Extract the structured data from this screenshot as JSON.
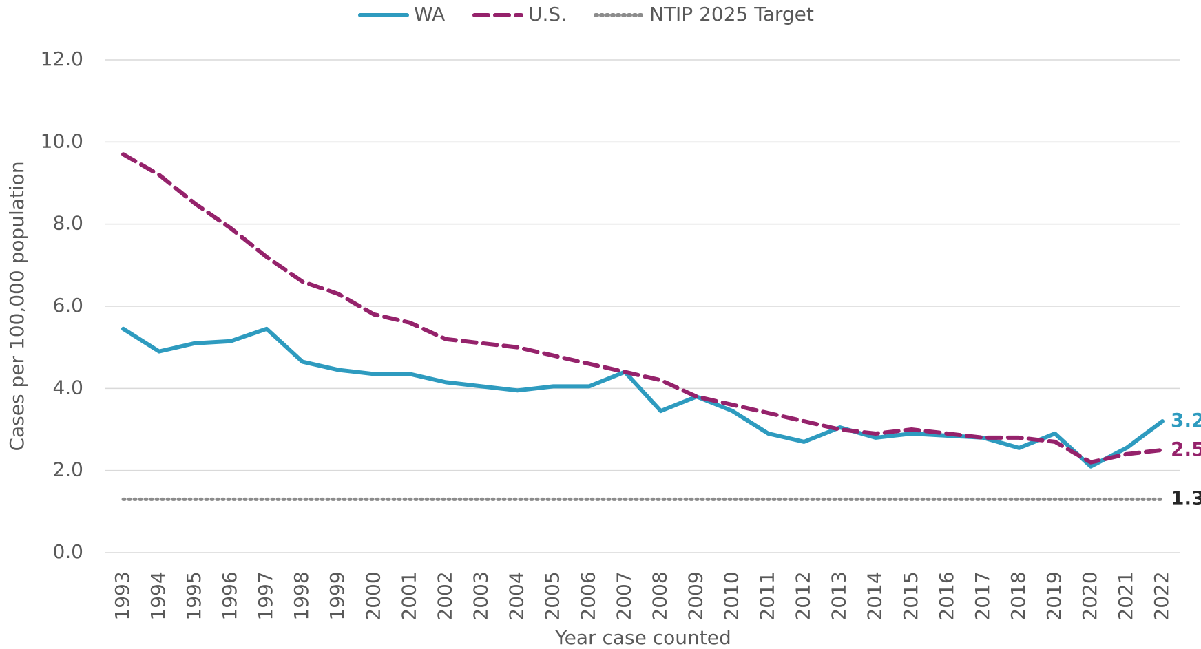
{
  "chart_data": {
    "type": "line",
    "x_label": "Year case counted",
    "y_label": "Cases per 100,000 population",
    "categories": [
      "1993",
      "1994",
      "1995",
      "1996",
      "1997",
      "1998",
      "1999",
      "2000",
      "2001",
      "2002",
      "2003",
      "2004",
      "2005",
      "2006",
      "2007",
      "2008",
      "2009",
      "2010",
      "2011",
      "2012",
      "2013",
      "2014",
      "2015",
      "2016",
      "2017",
      "2018",
      "2019",
      "2020",
      "2021",
      "2022"
    ],
    "series": [
      {
        "name": "WA",
        "color": "#2e9bbf",
        "dash": "solid",
        "values": [
          5.45,
          4.9,
          5.1,
          5.15,
          5.45,
          4.65,
          4.45,
          4.35,
          4.35,
          4.15,
          4.05,
          3.95,
          4.05,
          4.05,
          4.4,
          3.45,
          3.8,
          3.45,
          2.9,
          2.7,
          3.05,
          2.8,
          2.9,
          2.85,
          2.8,
          2.55,
          2.9,
          2.1,
          2.55,
          3.2
        ]
      },
      {
        "name": "U.S.",
        "color": "#95226b",
        "dash": "dashed",
        "values": [
          9.7,
          9.2,
          8.5,
          7.9,
          7.2,
          6.6,
          6.3,
          5.8,
          5.6,
          5.2,
          5.1,
          5.0,
          4.8,
          4.6,
          4.4,
          4.2,
          3.8,
          3.6,
          3.4,
          3.2,
          3.0,
          2.9,
          3.0,
          2.9,
          2.8,
          2.8,
          2.7,
          2.2,
          2.4,
          2.5
        ]
      },
      {
        "name": "NTIP 2025 Target",
        "color": "#8c8c8c",
        "label_color": "#262626",
        "dash": "dotted",
        "values": [
          1.3,
          1.3,
          1.3,
          1.3,
          1.3,
          1.3,
          1.3,
          1.3,
          1.3,
          1.3,
          1.3,
          1.3,
          1.3,
          1.3,
          1.3,
          1.3,
          1.3,
          1.3,
          1.3,
          1.3,
          1.3,
          1.3,
          1.3,
          1.3,
          1.3,
          1.3,
          1.3,
          1.3,
          1.3,
          1.3
        ]
      }
    ],
    "ylim": [
      0,
      12
    ],
    "yticks": [
      {
        "value": 0,
        "label": "0.0"
      },
      {
        "value": 2,
        "label": "2.0"
      },
      {
        "value": 4,
        "label": "4.0"
      },
      {
        "value": 6,
        "label": "6.0"
      },
      {
        "value": 8,
        "label": "8.0"
      },
      {
        "value": 10,
        "label": "10.0"
      },
      {
        "value": 12,
        "label": "12.0"
      }
    ],
    "grid": true,
    "legend": "top"
  }
}
